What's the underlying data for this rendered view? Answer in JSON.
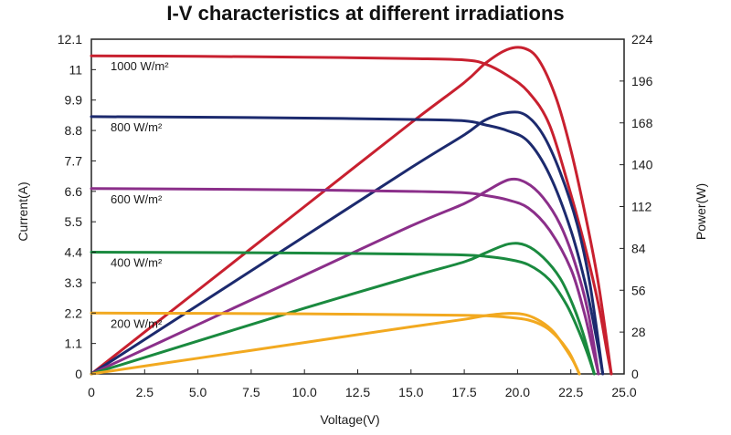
{
  "chart_data": {
    "type": "line",
    "title": "I-V characteristics at different irradiations",
    "xlabel": "Voltage(V)",
    "ylabel": "Current(A)",
    "y2label": "Power(W)",
    "xlim": [
      0,
      25
    ],
    "ylim": [
      0,
      12.1
    ],
    "y2lim": [
      0,
      224
    ],
    "x_ticks": [
      "0",
      "2.5",
      "5.0",
      "7.5",
      "10.0",
      "12.5",
      "15.0",
      "17.5",
      "20.0",
      "22.5",
      "25.0"
    ],
    "x_tick_values": [
      0,
      2.5,
      5,
      7.5,
      10,
      12.5,
      15,
      17.5,
      20,
      22.5,
      25
    ],
    "y_ticks": [
      "0",
      "1.1",
      "2.2",
      "3.3",
      "4.4",
      "5.5",
      "6.6",
      "7.7",
      "8.8",
      "9.9",
      "11",
      "12.1"
    ],
    "y_tick_values": [
      0,
      1.1,
      2.2,
      3.3,
      4.4,
      5.5,
      6.6,
      7.7,
      8.8,
      9.9,
      11,
      12.1
    ],
    "y2_ticks": [
      "0",
      "28",
      "56",
      "84",
      "112",
      "140",
      "168",
      "196",
      "224"
    ],
    "y2_tick_values": [
      0,
      28,
      56,
      84,
      112,
      140,
      168,
      196,
      224
    ],
    "series": [
      {
        "name": "1000 W/m²",
        "color": "#c8202f",
        "current": {
          "x": [
            0,
            5,
            10,
            15,
            17.5,
            18.5,
            19.5,
            20.5,
            21.5,
            22.5,
            23.2,
            23.8,
            24.2,
            24.4
          ],
          "y": [
            11.5,
            11.48,
            11.45,
            11.4,
            11.35,
            11.2,
            10.8,
            10.2,
            9.0,
            6.5,
            4.5,
            2.5,
            0.8,
            0
          ]
        },
        "power": {
          "x": [
            0,
            5,
            10,
            15,
            17.5,
            18.5,
            19.5,
            20.3,
            21.0,
            21.8,
            22.5,
            23.2,
            23.8,
            24.4
          ],
          "y": [
            0,
            56,
            112,
            168,
            195,
            208,
            217,
            218,
            210,
            185,
            150,
            105,
            60,
            0
          ]
        }
      },
      {
        "name": "800 W/m²",
        "color": "#1c2a6e",
        "current": {
          "x": [
            0,
            5,
            10,
            15,
            17.5,
            18.5,
            19.5,
            20.5,
            21.5,
            22.5,
            23.2,
            23.7,
            24.0
          ],
          "y": [
            9.3,
            9.28,
            9.25,
            9.2,
            9.15,
            9.0,
            8.8,
            8.4,
            7.2,
            5.2,
            3.2,
            1.3,
            0
          ]
        },
        "power": {
          "x": [
            0,
            5,
            10,
            15,
            17.5,
            18.5,
            19.6,
            20.4,
            21.2,
            22.0,
            22.8,
            23.4,
            24.0
          ],
          "y": [
            0,
            46,
            92,
            138,
            160,
            170,
            175,
            173,
            160,
            135,
            100,
            60,
            0
          ]
        }
      },
      {
        "name": "600 W/m²",
        "color": "#8b2f8a",
        "current": {
          "x": [
            0,
            5,
            10,
            15,
            17.5,
            18.5,
            19.5,
            20.5,
            21.5,
            22.5,
            23.1,
            23.5,
            23.8
          ],
          "y": [
            6.7,
            6.68,
            6.65,
            6.6,
            6.55,
            6.45,
            6.3,
            6.0,
            5.2,
            3.8,
            2.3,
            1.0,
            0
          ]
        },
        "power": {
          "x": [
            0,
            5,
            10,
            15,
            17.5,
            18.5,
            19.6,
            20.4,
            21.2,
            22.0,
            22.7,
            23.3,
            23.8
          ],
          "y": [
            0,
            33,
            66,
            99,
            114,
            122,
            130,
            128,
            118,
            100,
            74,
            42,
            0
          ]
        }
      },
      {
        "name": "400 W/m²",
        "color": "#1a8a3f",
        "current": {
          "x": [
            0,
            5,
            10,
            15,
            17.5,
            18.5,
            19.5,
            20.5,
            21.5,
            22.3,
            22.9,
            23.3,
            23.6
          ],
          "y": [
            4.4,
            4.39,
            4.37,
            4.33,
            4.3,
            4.25,
            4.15,
            3.95,
            3.4,
            2.5,
            1.5,
            0.7,
            0
          ]
        },
        "power": {
          "x": [
            0,
            5,
            10,
            15,
            17.5,
            18.5,
            19.6,
            20.4,
            21.2,
            22.0,
            22.6,
            23.1,
            23.6
          ],
          "y": [
            0,
            22,
            44,
            65,
            75,
            81,
            87,
            86,
            78,
            64,
            46,
            26,
            0
          ]
        }
      },
      {
        "name": "200 W/m²",
        "color": "#f2a920",
        "current": {
          "x": [
            0,
            5,
            10,
            15,
            17.5,
            18.5,
            19.5,
            20.5,
            21.3,
            21.9,
            22.4,
            22.7,
            22.9
          ],
          "y": [
            2.2,
            2.19,
            2.17,
            2.14,
            2.12,
            2.1,
            2.05,
            1.95,
            1.7,
            1.3,
            0.8,
            0.35,
            0
          ]
        },
        "power": {
          "x": [
            0,
            5,
            10,
            15,
            17.5,
            18.5,
            19.6,
            20.4,
            21.1,
            21.7,
            22.2,
            22.6,
            22.9
          ],
          "y": [
            0,
            10.5,
            21,
            31.5,
            36.5,
            39,
            40.5,
            39.5,
            35,
            28,
            18,
            9,
            0
          ]
        }
      }
    ]
  }
}
